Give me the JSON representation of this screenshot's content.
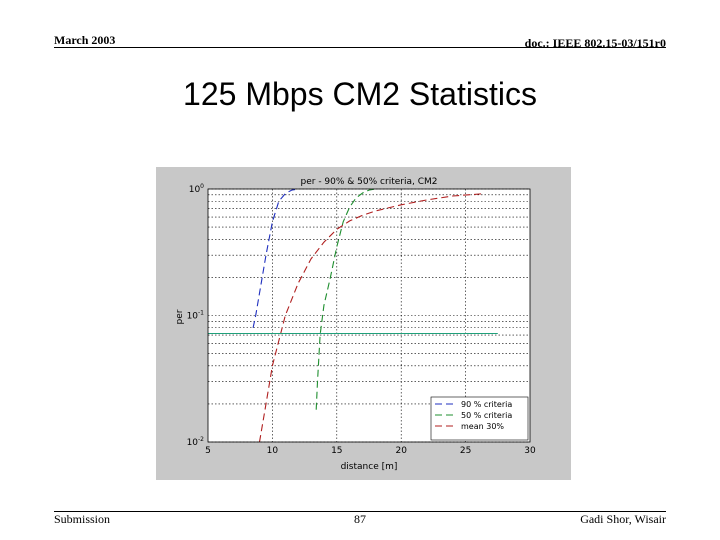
{
  "header": {
    "date": "March 2003",
    "doc": "doc.: IEEE 802.15-03/151r0"
  },
  "slide": {
    "title": "125 Mbps CM2 Statistics"
  },
  "footer": {
    "left": "Submission",
    "page": "87",
    "author": "Gadi Shor, Wisair"
  },
  "chart_data": {
    "type": "line",
    "title": "per - 90% & 50% criteria, CM2",
    "xlabel": "distance [m]",
    "ylabel": "per",
    "xlim": [
      5,
      30
    ],
    "ylim": [
      0.01,
      1
    ],
    "yscale": "log",
    "x_ticks": [
      "5",
      "10",
      "15",
      "20",
      "25",
      "30"
    ],
    "y_ticks": [
      {
        "value": 1,
        "label": "10^0"
      },
      {
        "value": 0.1,
        "label": "10^-1"
      },
      {
        "value": 0.01,
        "label": "10^-2"
      }
    ],
    "grid": true,
    "legend_position": "bottom-right",
    "series": [
      {
        "name": "90 % criteria",
        "color": "#1f2fbf",
        "style": "dash",
        "x": [
          8.5,
          8.7,
          9.0,
          9.5,
          10.0,
          10.5,
          11.0,
          11.5,
          12.0
        ],
        "y": [
          0.08,
          0.1,
          0.15,
          0.3,
          0.55,
          0.8,
          0.92,
          0.98,
          1.0
        ]
      },
      {
        "name": "50 % criteria",
        "color": "#1f8f2f",
        "style": "dash",
        "x": [
          13.4,
          13.5,
          13.7,
          14.0,
          14.5,
          15.0,
          15.5,
          16.0,
          16.5,
          17.0,
          17.5,
          18.0
        ],
        "y": [
          0.018,
          0.03,
          0.07,
          0.12,
          0.2,
          0.35,
          0.55,
          0.72,
          0.85,
          0.93,
          0.98,
          1.0
        ]
      },
      {
        "name": "mean 30%",
        "color": "#b01f1f",
        "style": "dash",
        "x": [
          9.0,
          9.5,
          10.0,
          11.0,
          12.0,
          13.0,
          14.0,
          15.0,
          16.0,
          17.0,
          18.0,
          20.0,
          22.0,
          24.0,
          26.5
        ],
        "y": [
          0.01,
          0.02,
          0.04,
          0.1,
          0.18,
          0.28,
          0.38,
          0.48,
          0.56,
          0.62,
          0.67,
          0.75,
          0.82,
          0.88,
          0.92
        ]
      },
      {
        "name": "",
        "color": "#1fa07a",
        "style": "solid",
        "x": [
          5,
          27.5
        ],
        "y": [
          0.072,
          0.072
        ]
      }
    ]
  }
}
